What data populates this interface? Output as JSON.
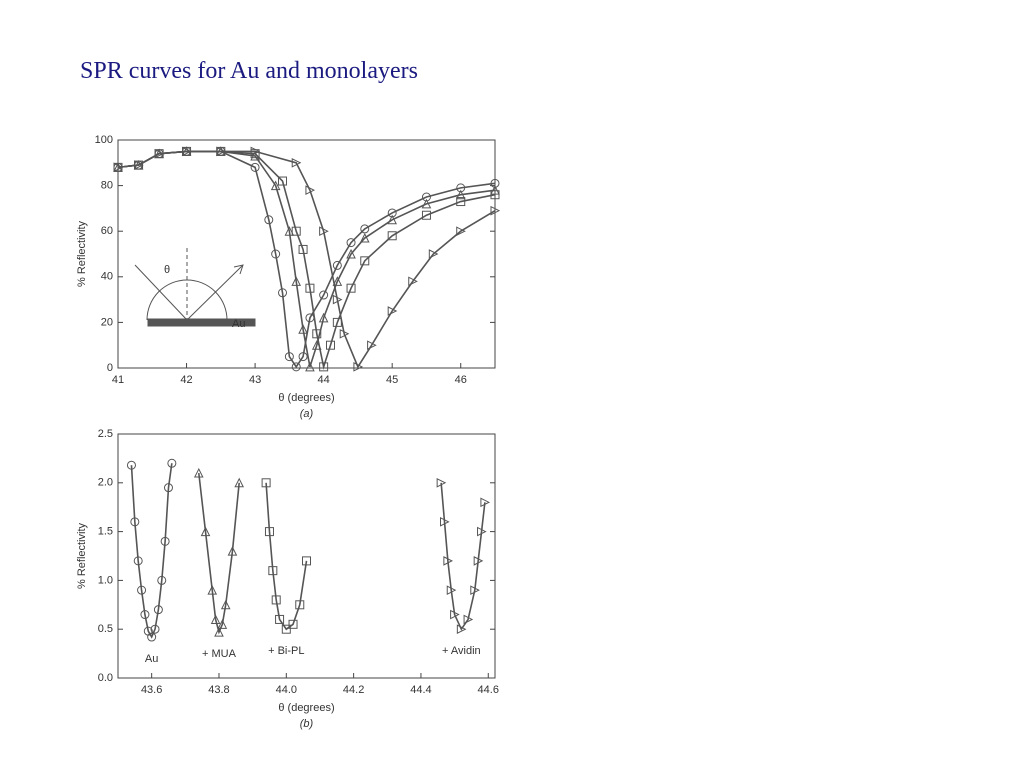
{
  "title": "SPR curves for Au and monolayers",
  "chart_data": [
    {
      "type": "line",
      "xlabel": "θ (degrees)",
      "ylabel": "% Reflectivity",
      "caption": "(a)",
      "annotations": [
        "θ",
        "Au"
      ],
      "xlim": [
        41,
        46.5
      ],
      "ylim": [
        0,
        100
      ],
      "xticks": [
        41,
        42,
        43,
        44,
        45,
        46
      ],
      "yticks": [
        0,
        20,
        40,
        60,
        80,
        100
      ],
      "series": [
        {
          "color": "#555555",
          "marker": "circle",
          "x": [
            41.0,
            41.3,
            41.6,
            42.0,
            42.5,
            43.0,
            43.2,
            43.3,
            43.4,
            43.5,
            43.6,
            43.7,
            43.8,
            44.0,
            44.2,
            44.4,
            44.6,
            45.0,
            45.5,
            46.0,
            46.5
          ],
          "values": [
            88,
            89,
            94,
            95,
            95,
            88,
            65,
            50,
            33,
            5,
            0.5,
            5,
            22,
            32,
            45,
            55,
            61,
            68,
            75,
            79,
            81
          ]
        },
        {
          "color": "#555555",
          "marker": "triangle",
          "x": [
            41.0,
            41.3,
            41.6,
            42.0,
            42.5,
            43.0,
            43.3,
            43.5,
            43.6,
            43.7,
            43.8,
            43.9,
            44.0,
            44.2,
            44.4,
            44.6,
            45.0,
            45.5,
            46.0,
            46.5
          ],
          "values": [
            88,
            89,
            94,
            95,
            95,
            93,
            80,
            60,
            38,
            17,
            0.5,
            10,
            22,
            38,
            50,
            57,
            65,
            72,
            76,
            78
          ]
        },
        {
          "color": "#555555",
          "marker": "square",
          "x": [
            41.0,
            41.3,
            41.6,
            42.0,
            42.5,
            43.0,
            43.4,
            43.6,
            43.7,
            43.8,
            43.9,
            44.0,
            44.1,
            44.2,
            44.4,
            44.6,
            45.0,
            45.5,
            46.0,
            46.5
          ],
          "values": [
            88,
            89,
            94,
            95,
            95,
            94,
            82,
            60,
            52,
            35,
            15,
            0.5,
            10,
            20,
            35,
            47,
            58,
            67,
            73,
            76
          ]
        },
        {
          "color": "#555555",
          "marker": "triangle-right",
          "x": [
            41.0,
            41.3,
            41.6,
            42.0,
            42.5,
            43.0,
            43.6,
            43.8,
            44.0,
            44.2,
            44.3,
            44.5,
            44.7,
            45.0,
            45.3,
            45.6,
            46.0,
            46.5
          ],
          "values": [
            88,
            89,
            94,
            95,
            95,
            95,
            90,
            78,
            60,
            30,
            15,
            0.5,
            10,
            25,
            38,
            50,
            60,
            69
          ]
        }
      ]
    },
    {
      "type": "line",
      "xlabel": "θ (degrees)",
      "ylabel": "% Reflectivity",
      "caption": "(b)",
      "xlim": [
        43.5,
        44.62
      ],
      "ylim": [
        0,
        2.5
      ],
      "xticks": [
        43.6,
        43.8,
        {
          "value": 44,
          "label": "44.0"
        },
        44.2,
        44.4,
        44.6
      ],
      "yticks": [
        {
          "value": 0,
          "label": "0.0"
        },
        0.5,
        {
          "value": 1,
          "label": "1.0"
        },
        1.5,
        {
          "value": 2,
          "label": "2.0"
        },
        2.5
      ],
      "series": [
        {
          "name": "Au",
          "color": "#555555",
          "marker": "circle",
          "x": [
            43.54,
            43.55,
            43.56,
            43.57,
            43.58,
            43.59,
            43.6,
            43.61,
            43.62,
            43.63,
            43.64,
            43.65,
            43.66
          ],
          "values": [
            2.18,
            1.6,
            1.2,
            0.9,
            0.65,
            0.48,
            0.42,
            0.5,
            0.7,
            1.0,
            1.4,
            1.95,
            2.2
          ]
        },
        {
          "name": "+ MUA",
          "color": "#555555",
          "marker": "triangle",
          "x": [
            43.74,
            43.76,
            43.78,
            43.79,
            43.8,
            43.81,
            43.82,
            43.84,
            43.86
          ],
          "values": [
            2.1,
            1.5,
            0.9,
            0.6,
            0.47,
            0.55,
            0.75,
            1.3,
            2.0
          ]
        },
        {
          "name": "+ Bi-PL",
          "color": "#555555",
          "marker": "square",
          "x": [
            43.94,
            43.95,
            43.96,
            43.97,
            43.98,
            44.0,
            44.02,
            44.04,
            44.06
          ],
          "values": [
            2.0,
            1.5,
            1.1,
            0.8,
            0.6,
            0.5,
            0.55,
            0.75,
            1.2
          ]
        },
        {
          "name": "+ Avidin",
          "color": "#555555",
          "marker": "triangle-right",
          "x": [
            44.46,
            44.47,
            44.48,
            44.49,
            44.5,
            44.52,
            44.54,
            44.56,
            44.57,
            44.58,
            44.59
          ],
          "values": [
            2.0,
            1.6,
            1.2,
            0.9,
            0.65,
            0.5,
            0.6,
            0.9,
            1.2,
            1.5,
            1.8
          ]
        }
      ]
    }
  ]
}
